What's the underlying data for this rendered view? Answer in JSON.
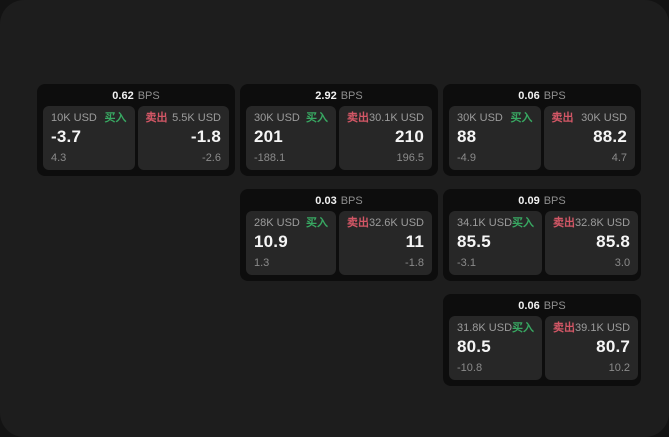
{
  "labels": {
    "bps_suffix": "BPS",
    "buy": "买入",
    "sell": "卖出"
  },
  "colors": {
    "backdrop": "#131313",
    "surface": "#1d1d1d",
    "card": "#0d0d0d",
    "tile": "#272727",
    "buy_green": "#38a862",
    "sell_red": "#d35766"
  },
  "cards": [
    {
      "bps": "0.62",
      "buy": {
        "amount": "10K USD",
        "price": "-3.7",
        "delta": "4.3"
      },
      "sell": {
        "amount": "5.5K USD",
        "price": "-1.8",
        "delta": "-2.6"
      }
    },
    {
      "bps": "2.92",
      "buy": {
        "amount": "30K USD",
        "price": "201",
        "delta": "-188.1"
      },
      "sell": {
        "amount": "30.1K USD",
        "price": "210",
        "delta": "196.5"
      }
    },
    {
      "bps": "0.06",
      "buy": {
        "amount": "30K USD",
        "price": "88",
        "delta": "-4.9"
      },
      "sell": {
        "amount": "30K USD",
        "price": "88.2",
        "delta": "4.7"
      }
    },
    {
      "bps": "0.03",
      "buy": {
        "amount": "28K USD",
        "price": "10.9",
        "delta": "1.3"
      },
      "sell": {
        "amount": "32.6K USD",
        "price": "11",
        "delta": "-1.8"
      }
    },
    {
      "bps": "0.09",
      "buy": {
        "amount": "34.1K USD",
        "price": "85.5",
        "delta": "-3.1"
      },
      "sell": {
        "amount": "32.8K USD",
        "price": "85.8",
        "delta": "3.0"
      }
    },
    {
      "bps": "0.06",
      "buy": {
        "amount": "31.8K USD",
        "price": "80.5",
        "delta": "-10.8"
      },
      "sell": {
        "amount": "39.1K USD",
        "price": "80.7",
        "delta": "10.2"
      }
    }
  ]
}
